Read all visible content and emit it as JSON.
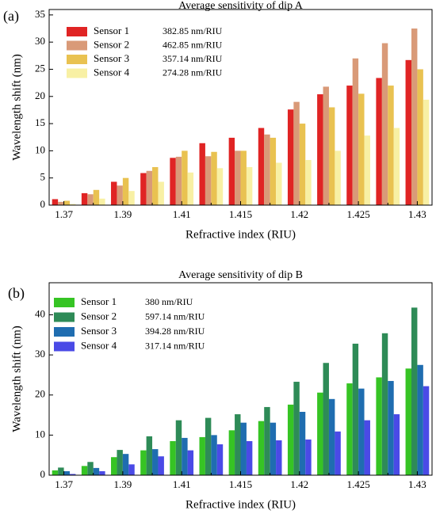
{
  "chart_data": [
    {
      "type": "bar",
      "panel": "(a)",
      "title": "Average sensitivity of dip A",
      "x_label": "Refractive index (RIU)",
      "y_label": "Wavelength shift (nm)",
      "categories": [
        "1.37",
        null,
        "1.39",
        null,
        "1.41",
        null,
        "1.415",
        null,
        "1.42",
        null,
        "1.425",
        null,
        "1.43"
      ],
      "ylim": [
        0,
        36
      ],
      "yticks": [
        0,
        5,
        10,
        15,
        20,
        25,
        30,
        35
      ],
      "series": [
        {
          "name": "Sensor 1",
          "sensitivity": "382.85 nm/RIU",
          "color": "#e02424",
          "values": [
            1.1,
            2.2,
            4.3,
            5.9,
            8.7,
            11.4,
            12.4,
            14.2,
            17.6,
            20.4,
            22.0,
            23.4,
            26.7
          ]
        },
        {
          "name": "Sensor 2",
          "sensitivity": "462.85 nm/RIU",
          "color": "#d99a78",
          "values": [
            0.6,
            2.0,
            3.6,
            6.3,
            8.9,
            9.0,
            10.0,
            13.0,
            19.0,
            21.8,
            27.0,
            29.8,
            32.5
          ]
        },
        {
          "name": "Sensor 3",
          "sensitivity": "357.14 nm/RIU",
          "color": "#e9c251",
          "values": [
            0.8,
            2.8,
            5.0,
            7.0,
            10.0,
            9.8,
            10.0,
            12.4,
            15.0,
            18.0,
            20.5,
            22.0,
            25.0
          ]
        },
        {
          "name": "Sensor 4",
          "sensitivity": "274.28 nm/RIU",
          "color": "#f8f0a4",
          "values": [
            0.2,
            1.2,
            2.6,
            4.3,
            6.0,
            6.8,
            7.0,
            7.8,
            8.3,
            10.0,
            12.8,
            14.2,
            19.4
          ]
        }
      ]
    },
    {
      "type": "bar",
      "panel": "(b)",
      "title": "Average sensitivity of dip B",
      "x_label": "Refractive index (RIU)",
      "y_label": "Wavelength shift (nm)",
      "categories": [
        "1.37",
        null,
        "1.39",
        null,
        "1.41",
        null,
        "1.415",
        null,
        "1.42",
        null,
        "1.425",
        null,
        "1.43"
      ],
      "ylim": [
        0,
        48
      ],
      "yticks": [
        0,
        10,
        20,
        30,
        40
      ],
      "series": [
        {
          "name": "Sensor 1",
          "sensitivity": "380 nm/RIU",
          "color": "#36c424",
          "values": [
            1.2,
            2.3,
            4.5,
            6.2,
            8.5,
            9.5,
            11.2,
            13.5,
            17.6,
            20.6,
            22.9,
            24.4,
            26.6
          ]
        },
        {
          "name": "Sensor 2",
          "sensitivity": "597.14 nm/RIU",
          "color": "#2e8b57",
          "values": [
            1.9,
            3.3,
            6.3,
            9.7,
            13.7,
            14.3,
            15.2,
            17.0,
            23.3,
            28.0,
            32.8,
            35.4,
            41.8
          ]
        },
        {
          "name": "Sensor 3",
          "sensitivity": "394.28 nm/RIU",
          "color": "#1f6db0",
          "values": [
            1.0,
            1.8,
            5.3,
            6.5,
            9.3,
            10.0,
            13.1,
            13.1,
            15.8,
            19.0,
            21.6,
            23.5,
            27.5
          ]
        },
        {
          "name": "Sensor 4",
          "sensitivity": "317.14 nm/RIU",
          "color": "#4a4ae6",
          "values": [
            0.3,
            1.0,
            2.7,
            4.7,
            6.2,
            7.7,
            8.5,
            8.7,
            8.9,
            10.9,
            13.7,
            15.2,
            22.2
          ]
        }
      ]
    }
  ]
}
